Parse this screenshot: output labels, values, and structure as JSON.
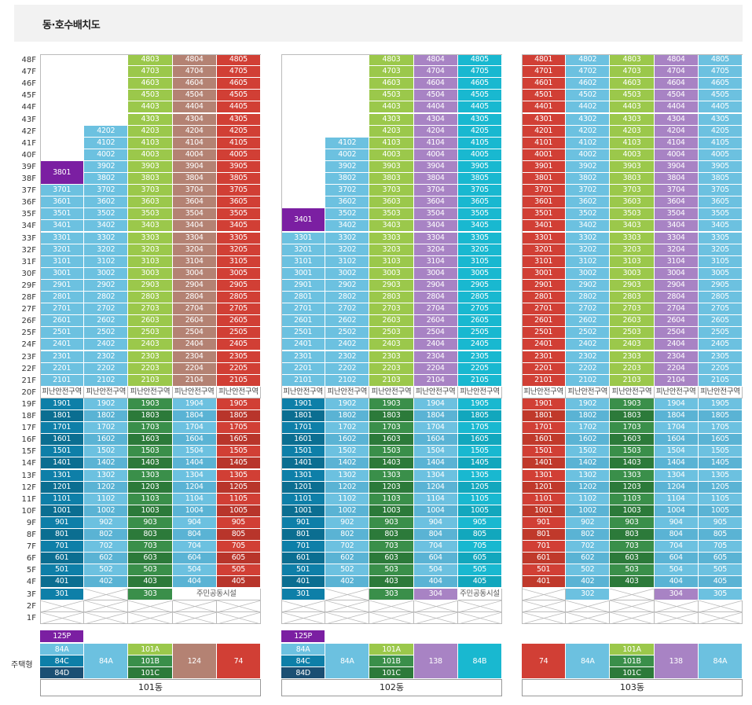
{
  "title": "동·호수배치도",
  "type_label": "주택형",
  "refuge_label": "피난안전구역",
  "facility_label": "주민공동시설",
  "colors": {
    "low": {
      "sky": "#0e7fa8",
      "blue": "#1b4f73",
      "lime": "#3a8f4a",
      "mauve": "#7f8fa3",
      "red": "#c0392b",
      "cyan": "#00a5c8"
    },
    "high": {
      "sky": "#6cc1e0",
      "lime": "#9bc84b",
      "mauve": "#b48273",
      "red": "#d13f35",
      "cyan": "#19b8d0",
      "purple": "#a883c4"
    }
  },
  "floors": [
    "48F",
    "47F",
    "46F",
    "45F",
    "44F",
    "43F",
    "42F",
    "41F",
    "40F",
    "39F",
    "38F",
    "37F",
    "36F",
    "35F",
    "34F",
    "33F",
    "32F",
    "31F",
    "30F",
    "29F",
    "28F",
    "27F",
    "26F",
    "25F",
    "24F",
    "23F",
    "22F",
    "21F",
    "20F",
    "19F",
    "18F",
    "17F",
    "16F",
    "15F",
    "14F",
    "13F",
    "12F",
    "11F",
    "10F",
    "9F",
    "8F",
    "7F",
    "6F",
    "5F",
    "4F",
    "3F",
    "2F",
    "1F"
  ],
  "buildings": [
    {
      "name": "101동",
      "start": [
        37,
        42,
        48,
        48,
        48
      ],
      "special": {
        "label": "3801",
        "lines": 2
      },
      "third": [
        "301",
        "",
        "303",
        "",
        ""
      ],
      "thirdFacility": [
        3,
        4
      ],
      "types": {
        "p": "125P",
        "c1": [
          "84A",
          "84C",
          "84D"
        ],
        "c2": "84A",
        "c3": [
          "101A",
          "101B",
          "101C"
        ],
        "c4": "124",
        "c5": "74"
      },
      "hi": [
        "sky",
        "sky",
        "lime",
        "mauve",
        "red"
      ],
      "lo": [
        "low1",
        "low2",
        "low3",
        "low4",
        "low5"
      ]
    },
    {
      "name": "102동",
      "start": [
        33,
        41,
        48,
        48,
        48
      ],
      "special": {
        "label": "3401",
        "lines": 2
      },
      "third": [
        "301",
        "",
        "303",
        "304",
        ""
      ],
      "thirdFacility": [
        4
      ],
      "types": {
        "p": "125P",
        "c1": [
          "84A",
          "84C",
          "84D"
        ],
        "c2": "84A",
        "c3": [
          "101A",
          "101B",
          "101C"
        ],
        "c4": "138",
        "c5": "84B"
      },
      "hi": [
        "sky",
        "sky",
        "lime",
        "purple",
        "cyan"
      ],
      "lo": [
        "low1",
        "low2",
        "low3",
        "low4",
        "low5"
      ]
    },
    {
      "name": "103동",
      "start": [
        48,
        48,
        48,
        48,
        48
      ],
      "special": null,
      "third": [
        "",
        "302",
        "",
        "304",
        "305"
      ],
      "thirdFacility": [],
      "types": {
        "p": "",
        "c1": [
          "74"
        ],
        "c2": "84A",
        "c3": [
          "101A",
          "101B",
          "101C"
        ],
        "c4": "138",
        "c5": "84A"
      },
      "hi": [
        "red",
        "sky",
        "lime",
        "purple",
        "sky"
      ],
      "lo": [
        "low1",
        "low2",
        "low3",
        "low4",
        "low5"
      ]
    }
  ]
}
